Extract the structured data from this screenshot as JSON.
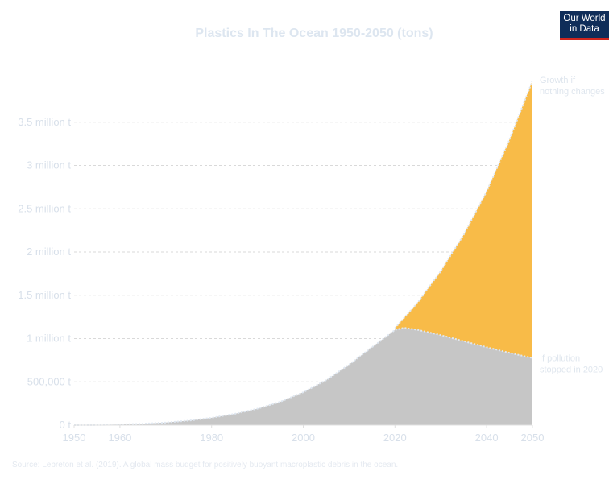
{
  "header": {
    "title": "Plastics In The Ocean 1950-2050 (tons)"
  },
  "logo": {
    "line1": "Our World",
    "line2": "in Data",
    "bg_color": "#0f2d59",
    "bar_color": "#ce261e"
  },
  "footer": {
    "source": "Source: Lebreton et al. (2019). A global mass budget for positively buoyant macroplastic debris in the ocean."
  },
  "chart_data": {
    "type": "area",
    "title": "Plastics In The Ocean 1950-2050 (tons)",
    "xlabel": "",
    "ylabel": "",
    "xlim": [
      1950,
      2050
    ],
    "ylim": [
      0,
      4000000
    ],
    "y_ticks": [
      {
        "value": 0,
        "label": "0 t"
      },
      {
        "value": 500000,
        "label": "500,000 t"
      },
      {
        "value": 1000000,
        "label": "1 million t"
      },
      {
        "value": 1500000,
        "label": "1.5 million t"
      },
      {
        "value": 2000000,
        "label": "2 million t"
      },
      {
        "value": 2500000,
        "label": "2.5 million t"
      },
      {
        "value": 3000000,
        "label": "3 million t"
      },
      {
        "value": 3500000,
        "label": "3.5 million t"
      }
    ],
    "x_ticks": [
      1950,
      1960,
      1980,
      2000,
      2020,
      2040,
      2050
    ],
    "grid": true,
    "series": [
      {
        "name": "Growth if nothing changes",
        "label_lines": [
          "Growth if",
          "nothing changes"
        ],
        "color": "#f8bb48",
        "x": [
          2020,
          2025,
          2030,
          2035,
          2040,
          2045,
          2050
        ],
        "values": [
          1120000,
          1420000,
          1780000,
          2200000,
          2700000,
          3300000,
          3980000
        ]
      },
      {
        "name": "If pollution stopped in 2020",
        "label_lines": [
          "If pollution",
          "stopped in 2020"
        ],
        "color": "#c6c6c6",
        "x": [
          1950,
          1955,
          1960,
          1965,
          1970,
          1975,
          1980,
          1985,
          1990,
          1995,
          2000,
          2005,
          2010,
          2015,
          2020,
          2022,
          2025,
          2030,
          2035,
          2040,
          2045,
          2050
        ],
        "values": [
          0,
          2000,
          8000,
          16000,
          30000,
          52000,
          85000,
          130000,
          190000,
          270000,
          380000,
          520000,
          700000,
          900000,
          1100000,
          1125000,
          1100000,
          1040000,
          970000,
          900000,
          835000,
          775000
        ]
      }
    ]
  }
}
